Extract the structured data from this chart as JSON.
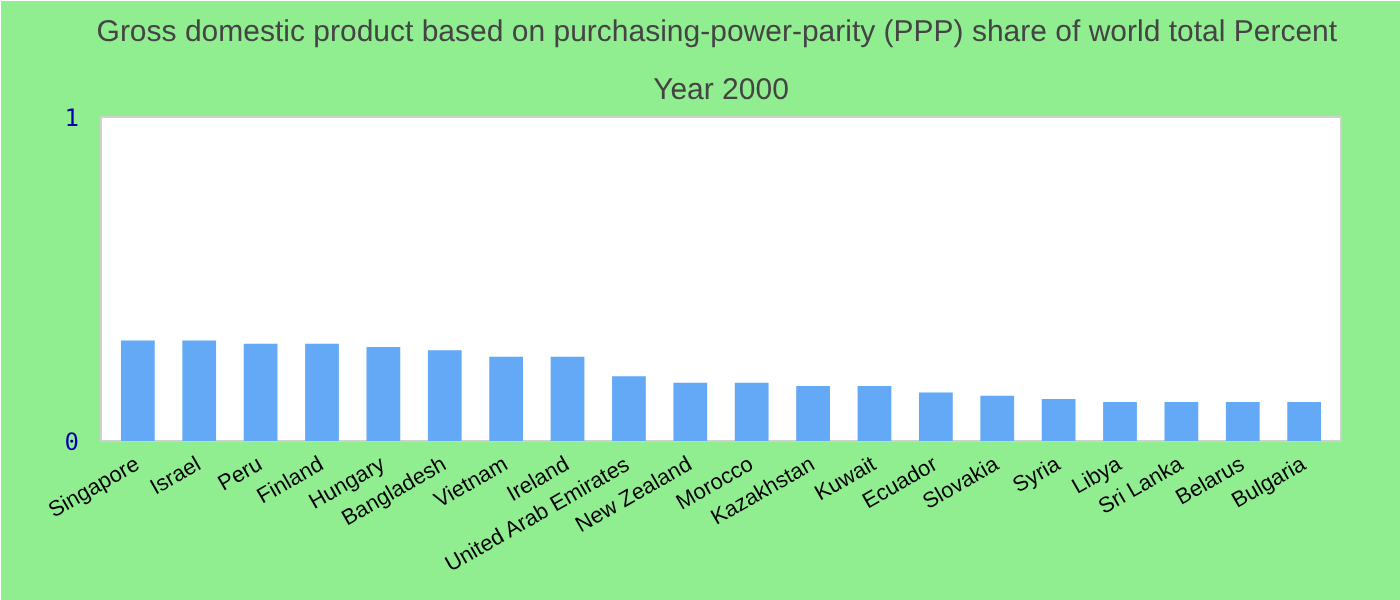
{
  "chart_data": {
    "type": "bar",
    "title": "Gross domestic product based on purchasing-power-parity (PPP) share of world total  Percent",
    "subtitle": "Year 2000",
    "categories": [
      "Singapore",
      "Israel",
      "Peru",
      "Finland",
      "Hungary",
      "Bangladesh",
      "Vietnam",
      "Ireland",
      "United Arab Emirates",
      "New Zealand",
      "Morocco",
      "Kazakhstan",
      "Kuwait",
      "Ecuador",
      "Slovakia",
      "Syria",
      "Libya",
      "Sri Lanka",
      "Belarus",
      "Bulgaria"
    ],
    "values": [
      0.31,
      0.31,
      0.3,
      0.3,
      0.29,
      0.28,
      0.26,
      0.26,
      0.2,
      0.18,
      0.18,
      0.17,
      0.17,
      0.15,
      0.14,
      0.13,
      0.12,
      0.12,
      0.12,
      0.12
    ],
    "color": "#63a9f5",
    "ylim": [
      0,
      1
    ],
    "yticks": [
      0,
      1
    ],
    "grid": false
  }
}
